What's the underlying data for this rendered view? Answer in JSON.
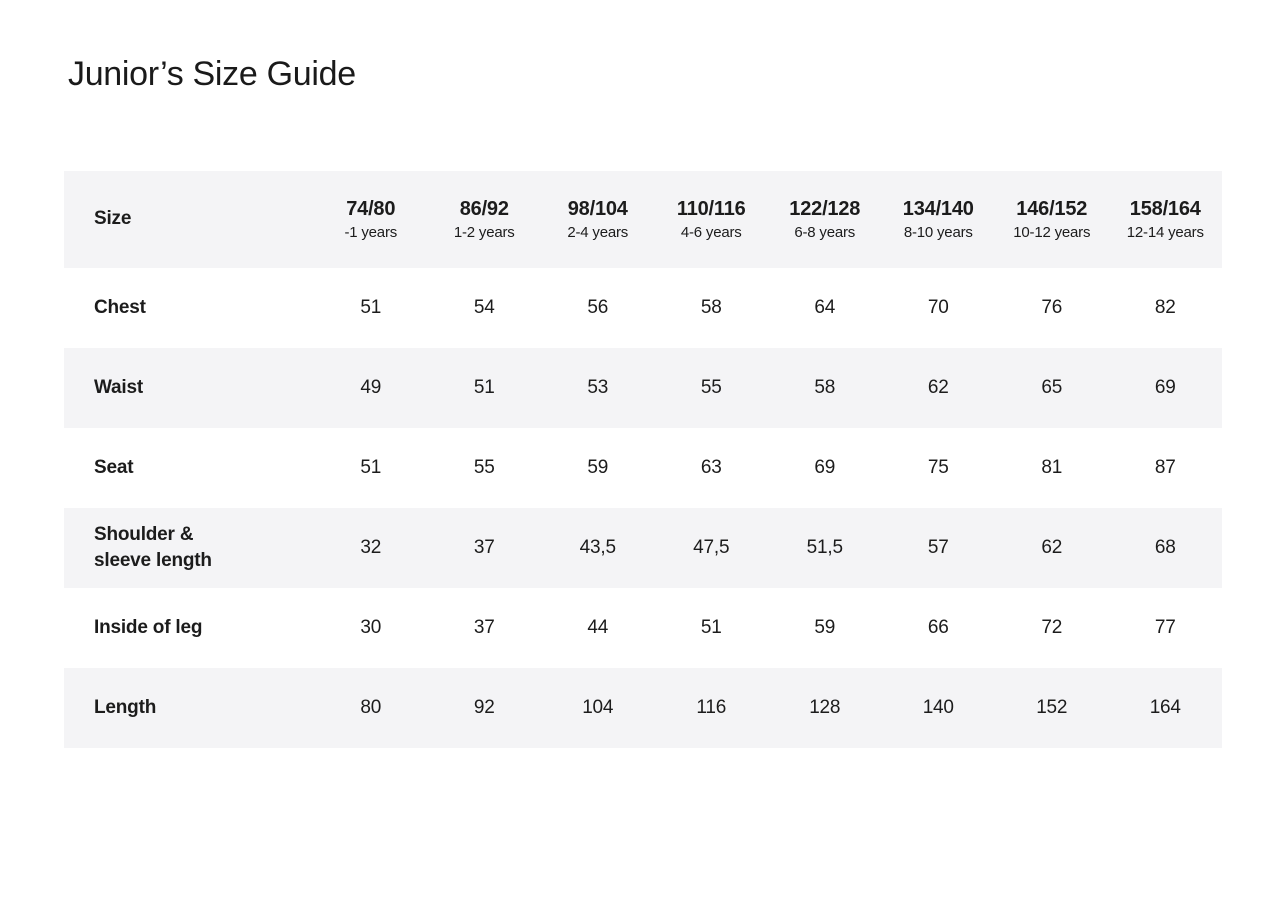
{
  "page": {
    "title": "Junior’s Size Guide"
  },
  "colors": {
    "background": "#ffffff",
    "stripe": "#f4f4f6",
    "text": "#1c1c1c"
  },
  "table": {
    "header": {
      "label": "Size",
      "columns": [
        {
          "size": "74/80",
          "age": "-1 years"
        },
        {
          "size": "86/92",
          "age": "1-2 years"
        },
        {
          "size": "98/104",
          "age": "2-4 years"
        },
        {
          "size": "110/116",
          "age": "4-6 years"
        },
        {
          "size": "122/128",
          "age": "6-8 years"
        },
        {
          "size": "134/140",
          "age": "8-10 years"
        },
        {
          "size": "146/152",
          "age": "10-12 years"
        },
        {
          "size": "158/164",
          "age": "12-14 years"
        }
      ]
    },
    "rows": [
      {
        "label": "Chest",
        "values": [
          "51",
          "54",
          "56",
          "58",
          "64",
          "70",
          "76",
          "82"
        ]
      },
      {
        "label": "Waist",
        "values": [
          "49",
          "51",
          "53",
          "55",
          "58",
          "62",
          "65",
          "69"
        ]
      },
      {
        "label": "Seat",
        "values": [
          "51",
          "55",
          "59",
          "63",
          "69",
          "75",
          "81",
          "87"
        ]
      },
      {
        "label": "Shoulder & sleeve length",
        "values": [
          "32",
          "37",
          "43,5",
          "47,5",
          "51,5",
          "57",
          "62",
          "68"
        ]
      },
      {
        "label": "Inside of leg",
        "values": [
          "30",
          "37",
          "44",
          "51",
          "59",
          "66",
          "72",
          "77"
        ]
      },
      {
        "label": "Length",
        "values": [
          "80",
          "92",
          "104",
          "116",
          "128",
          "140",
          "152",
          "164"
        ]
      }
    ]
  }
}
